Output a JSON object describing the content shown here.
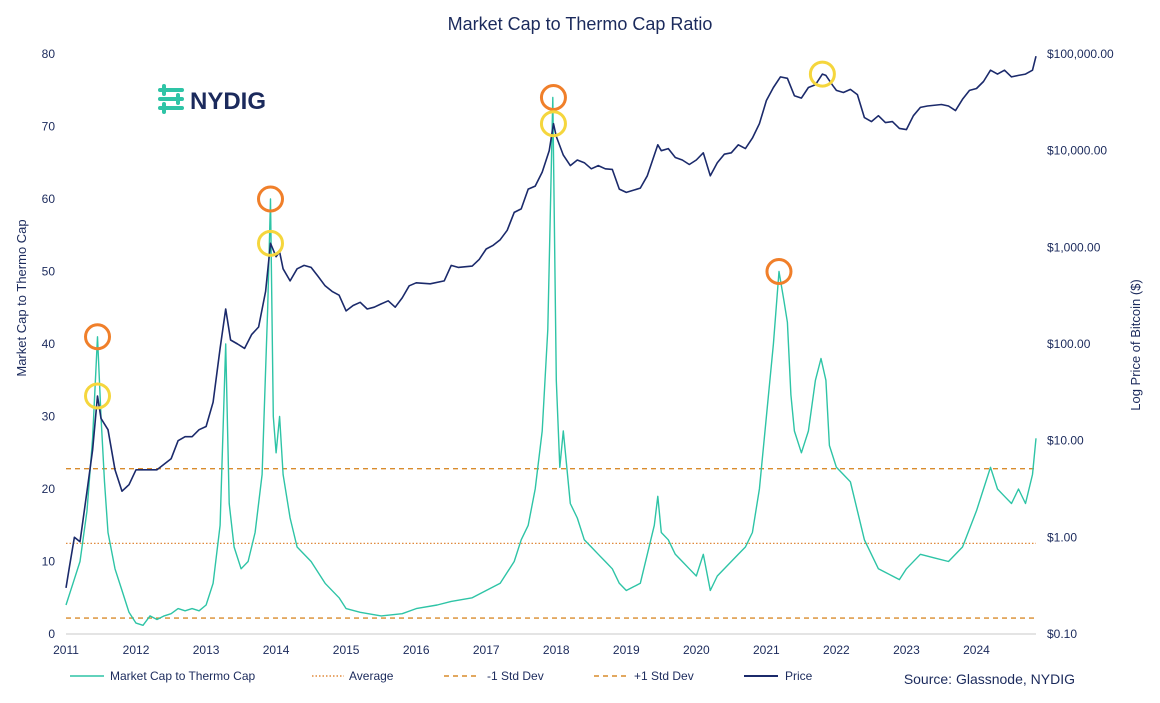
{
  "chart_data": {
    "type": "line",
    "title": "Market Cap to Thermo Cap Ratio",
    "xlabel": "",
    "ylabel_left": "Market Cap to Thermo Cap",
    "ylabel_right": "Log Price of Bitcoin ($)",
    "x_range": [
      2011.0,
      2024.85
    ],
    "ylim_left": [
      0,
      80
    ],
    "ylim_right_log": [
      0.1,
      100000
    ],
    "x_ticks": [
      "2011",
      "2012",
      "2013",
      "2014",
      "2015",
      "2016",
      "2017",
      "2018",
      "2019",
      "2020",
      "2021",
      "2022",
      "2023",
      "2024"
    ],
    "y_left_ticks": [
      "0",
      "10",
      "20",
      "30",
      "40",
      "50",
      "60",
      "70",
      "80"
    ],
    "y_right_ticks": [
      "$0.10",
      "$1.00",
      "$10.00",
      "$100.00",
      "$1,000.00",
      "$10,000.00",
      "$100,000.00"
    ],
    "legend": [
      "Market Cap to Thermo Cap",
      "Average",
      "-1 Std Dev",
      "+1 Std Dev",
      "Price"
    ],
    "source": "Source: Glassnode, NYDIG",
    "logo_text": "NYDIG",
    "reference_lines": {
      "average": 12.5,
      "minus_1_std": 2.2,
      "plus_1_std": 22.8
    },
    "series": [
      {
        "name": "Market Cap to Thermo Cap",
        "color": "#2ec4a6",
        "points": [
          [
            2011.0,
            4
          ],
          [
            2011.1,
            7
          ],
          [
            2011.2,
            10
          ],
          [
            2011.3,
            17
          ],
          [
            2011.38,
            27
          ],
          [
            2011.45,
            41
          ],
          [
            2011.5,
            30
          ],
          [
            2011.55,
            21
          ],
          [
            2011.6,
            14
          ],
          [
            2011.7,
            9
          ],
          [
            2011.8,
            6
          ],
          [
            2011.9,
            3
          ],
          [
            2012.0,
            1.5
          ],
          [
            2012.1,
            1.2
          ],
          [
            2012.2,
            2.5
          ],
          [
            2012.3,
            2
          ],
          [
            2012.4,
            2.5
          ],
          [
            2012.5,
            2.8
          ],
          [
            2012.6,
            3.5
          ],
          [
            2012.7,
            3.2
          ],
          [
            2012.8,
            3.5
          ],
          [
            2012.9,
            3.2
          ],
          [
            2013.0,
            4
          ],
          [
            2013.1,
            7
          ],
          [
            2013.2,
            15
          ],
          [
            2013.28,
            40
          ],
          [
            2013.33,
            18
          ],
          [
            2013.4,
            12
          ],
          [
            2013.5,
            9
          ],
          [
            2013.6,
            10
          ],
          [
            2013.7,
            14
          ],
          [
            2013.8,
            22
          ],
          [
            2013.88,
            45
          ],
          [
            2013.92,
            60
          ],
          [
            2013.96,
            30
          ],
          [
            2014.0,
            25
          ],
          [
            2014.05,
            30
          ],
          [
            2014.1,
            22
          ],
          [
            2014.2,
            16
          ],
          [
            2014.3,
            12
          ],
          [
            2014.5,
            10
          ],
          [
            2014.7,
            7
          ],
          [
            2014.9,
            5
          ],
          [
            2015.0,
            3.5
          ],
          [
            2015.2,
            3
          ],
          [
            2015.5,
            2.5
          ],
          [
            2015.8,
            2.8
          ],
          [
            2016.0,
            3.5
          ],
          [
            2016.3,
            4
          ],
          [
            2016.5,
            4.5
          ],
          [
            2016.8,
            5
          ],
          [
            2017.0,
            6
          ],
          [
            2017.2,
            7
          ],
          [
            2017.4,
            10
          ],
          [
            2017.5,
            13
          ],
          [
            2017.6,
            15
          ],
          [
            2017.7,
            20
          ],
          [
            2017.8,
            28
          ],
          [
            2017.88,
            42
          ],
          [
            2017.95,
            74
          ],
          [
            2018.0,
            35
          ],
          [
            2018.05,
            23
          ],
          [
            2018.1,
            28
          ],
          [
            2018.2,
            18
          ],
          [
            2018.3,
            16
          ],
          [
            2018.4,
            13
          ],
          [
            2018.5,
            12
          ],
          [
            2018.6,
            11
          ],
          [
            2018.7,
            10
          ],
          [
            2018.8,
            9
          ],
          [
            2018.9,
            7
          ],
          [
            2019.0,
            6
          ],
          [
            2019.1,
            6.5
          ],
          [
            2019.2,
            7
          ],
          [
            2019.3,
            11
          ],
          [
            2019.4,
            15
          ],
          [
            2019.45,
            19
          ],
          [
            2019.5,
            14
          ],
          [
            2019.6,
            13
          ],
          [
            2019.7,
            11
          ],
          [
            2019.8,
            10
          ],
          [
            2019.9,
            9
          ],
          [
            2020.0,
            8
          ],
          [
            2020.1,
            11
          ],
          [
            2020.2,
            6
          ],
          [
            2020.3,
            8
          ],
          [
            2020.4,
            9
          ],
          [
            2020.5,
            10
          ],
          [
            2020.6,
            11
          ],
          [
            2020.7,
            12
          ],
          [
            2020.8,
            14
          ],
          [
            2020.9,
            20
          ],
          [
            2021.0,
            30
          ],
          [
            2021.1,
            40
          ],
          [
            2021.18,
            50
          ],
          [
            2021.25,
            46
          ],
          [
            2021.3,
            43
          ],
          [
            2021.35,
            33
          ],
          [
            2021.4,
            28
          ],
          [
            2021.5,
            25
          ],
          [
            2021.6,
            28
          ],
          [
            2021.7,
            35
          ],
          [
            2021.78,
            38
          ],
          [
            2021.85,
            35
          ],
          [
            2021.9,
            26
          ],
          [
            2022.0,
            23
          ],
          [
            2022.1,
            22
          ],
          [
            2022.2,
            21
          ],
          [
            2022.3,
            17
          ],
          [
            2022.4,
            13
          ],
          [
            2022.5,
            11
          ],
          [
            2022.6,
            9
          ],
          [
            2022.7,
            8.5
          ],
          [
            2022.8,
            8
          ],
          [
            2022.9,
            7.5
          ],
          [
            2023.0,
            9
          ],
          [
            2023.2,
            11
          ],
          [
            2023.4,
            10.5
          ],
          [
            2023.6,
            10
          ],
          [
            2023.8,
            12
          ],
          [
            2024.0,
            17
          ],
          [
            2024.1,
            20
          ],
          [
            2024.2,
            23
          ],
          [
            2024.3,
            20
          ],
          [
            2024.4,
            19
          ],
          [
            2024.5,
            18
          ],
          [
            2024.6,
            20
          ],
          [
            2024.7,
            18
          ],
          [
            2024.8,
            22
          ],
          [
            2024.85,
            27
          ]
        ]
      },
      {
        "name": "Price",
        "color": "#1b2a6b",
        "points": [
          [
            2011.0,
            0.3
          ],
          [
            2011.05,
            0.5
          ],
          [
            2011.12,
            1
          ],
          [
            2011.2,
            0.9
          ],
          [
            2011.3,
            3
          ],
          [
            2011.38,
            8
          ],
          [
            2011.45,
            29
          ],
          [
            2011.5,
            17
          ],
          [
            2011.6,
            13
          ],
          [
            2011.7,
            5
          ],
          [
            2011.8,
            3
          ],
          [
            2011.9,
            3.5
          ],
          [
            2012.0,
            5
          ],
          [
            2012.1,
            5
          ],
          [
            2012.3,
            5
          ],
          [
            2012.5,
            6.5
          ],
          [
            2012.6,
            10
          ],
          [
            2012.7,
            11
          ],
          [
            2012.8,
            11
          ],
          [
            2012.9,
            13
          ],
          [
            2013.0,
            14
          ],
          [
            2013.1,
            25
          ],
          [
            2013.2,
            90
          ],
          [
            2013.28,
            230
          ],
          [
            2013.35,
            110
          ],
          [
            2013.45,
            100
          ],
          [
            2013.55,
            90
          ],
          [
            2013.65,
            125
          ],
          [
            2013.75,
            150
          ],
          [
            2013.85,
            350
          ],
          [
            2013.92,
            1100
          ],
          [
            2014.0,
            800
          ],
          [
            2014.05,
            900
          ],
          [
            2014.1,
            600
          ],
          [
            2014.2,
            450
          ],
          [
            2014.3,
            600
          ],
          [
            2014.4,
            650
          ],
          [
            2014.5,
            620
          ],
          [
            2014.6,
            500
          ],
          [
            2014.7,
            400
          ],
          [
            2014.8,
            350
          ],
          [
            2014.9,
            320
          ],
          [
            2015.0,
            220
          ],
          [
            2015.1,
            250
          ],
          [
            2015.2,
            270
          ],
          [
            2015.3,
            230
          ],
          [
            2015.4,
            240
          ],
          [
            2015.5,
            260
          ],
          [
            2015.6,
            280
          ],
          [
            2015.7,
            240
          ],
          [
            2015.8,
            300
          ],
          [
            2015.9,
            400
          ],
          [
            2016.0,
            430
          ],
          [
            2016.2,
            420
          ],
          [
            2016.4,
            450
          ],
          [
            2016.5,
            650
          ],
          [
            2016.6,
            620
          ],
          [
            2016.8,
            640
          ],
          [
            2016.9,
            750
          ],
          [
            2017.0,
            960
          ],
          [
            2017.1,
            1050
          ],
          [
            2017.2,
            1200
          ],
          [
            2017.3,
            1500
          ],
          [
            2017.4,
            2300
          ],
          [
            2017.5,
            2500
          ],
          [
            2017.6,
            4000
          ],
          [
            2017.7,
            4300
          ],
          [
            2017.8,
            6000
          ],
          [
            2017.9,
            10000
          ],
          [
            2017.96,
            19000
          ],
          [
            2018.0,
            14000
          ],
          [
            2018.1,
            9000
          ],
          [
            2018.2,
            7000
          ],
          [
            2018.3,
            8000
          ],
          [
            2018.4,
            7500
          ],
          [
            2018.5,
            6500
          ],
          [
            2018.6,
            7000
          ],
          [
            2018.7,
            6500
          ],
          [
            2018.8,
            6400
          ],
          [
            2018.9,
            4000
          ],
          [
            2019.0,
            3700
          ],
          [
            2019.2,
            4100
          ],
          [
            2019.3,
            5500
          ],
          [
            2019.45,
            11500
          ],
          [
            2019.5,
            10000
          ],
          [
            2019.6,
            10500
          ],
          [
            2019.7,
            8500
          ],
          [
            2019.8,
            8000
          ],
          [
            2019.9,
            7200
          ],
          [
            2020.0,
            8000
          ],
          [
            2020.1,
            9500
          ],
          [
            2020.2,
            5500
          ],
          [
            2020.3,
            7500
          ],
          [
            2020.4,
            9200
          ],
          [
            2020.5,
            9500
          ],
          [
            2020.6,
            11500
          ],
          [
            2020.7,
            10500
          ],
          [
            2020.8,
            13500
          ],
          [
            2020.9,
            19000
          ],
          [
            2021.0,
            33000
          ],
          [
            2021.1,
            45000
          ],
          [
            2021.2,
            58000
          ],
          [
            2021.3,
            56000
          ],
          [
            2021.4,
            37000
          ],
          [
            2021.5,
            35000
          ],
          [
            2021.6,
            45000
          ],
          [
            2021.7,
            48000
          ],
          [
            2021.8,
            62000
          ],
          [
            2021.85,
            60000
          ],
          [
            2021.95,
            47000
          ],
          [
            2022.0,
            42000
          ],
          [
            2022.1,
            40000
          ],
          [
            2022.2,
            43000
          ],
          [
            2022.3,
            38000
          ],
          [
            2022.4,
            22000
          ],
          [
            2022.5,
            20000
          ],
          [
            2022.6,
            23000
          ],
          [
            2022.7,
            19500
          ],
          [
            2022.8,
            20000
          ],
          [
            2022.9,
            17000
          ],
          [
            2023.0,
            16500
          ],
          [
            2023.1,
            23000
          ],
          [
            2023.2,
            28000
          ],
          [
            2023.3,
            29000
          ],
          [
            2023.5,
            30000
          ],
          [
            2023.6,
            29000
          ],
          [
            2023.7,
            26000
          ],
          [
            2023.8,
            34000
          ],
          [
            2023.9,
            42000
          ],
          [
            2024.0,
            44000
          ],
          [
            2024.1,
            52000
          ],
          [
            2024.2,
            68000
          ],
          [
            2024.3,
            62000
          ],
          [
            2024.4,
            68000
          ],
          [
            2024.5,
            58000
          ],
          [
            2024.6,
            60000
          ],
          [
            2024.7,
            62000
          ],
          [
            2024.8,
            68000
          ],
          [
            2024.85,
            95000
          ]
        ]
      }
    ],
    "highlight_circles": [
      {
        "series": "Market Cap to Thermo Cap",
        "x": 2011.45,
        "y": 41,
        "color": "#f07f2a"
      },
      {
        "series": "Price",
        "x": 2011.45,
        "y": 29,
        "color": "#f5d63d"
      },
      {
        "series": "Market Cap to Thermo Cap",
        "x": 2013.92,
        "y": 60,
        "color": "#f07f2a"
      },
      {
        "series": "Price",
        "x": 2013.92,
        "y": 1100,
        "color": "#f5d63d"
      },
      {
        "series": "Market Cap to Thermo Cap",
        "x": 2017.96,
        "y": 74,
        "color": "#f07f2a"
      },
      {
        "series": "Price",
        "x": 2017.96,
        "y": 19000,
        "color": "#f5d63d"
      },
      {
        "series": "Market Cap to Thermo Cap",
        "x": 2021.18,
        "y": 50,
        "color": "#f07f2a"
      },
      {
        "series": "Price",
        "x": 2021.8,
        "y": 62000,
        "color": "#f5d63d"
      }
    ],
    "colors": {
      "ratio": "#2ec4a6",
      "price": "#1b2a6b",
      "average": "#e08a3c",
      "std_dev": "#d98b2b",
      "peak_ratio_circle": "#f07f2a",
      "peak_price_circle": "#f5d63d",
      "text": "#1b2a5c",
      "logo_icon": "#2ec4a6"
    }
  }
}
